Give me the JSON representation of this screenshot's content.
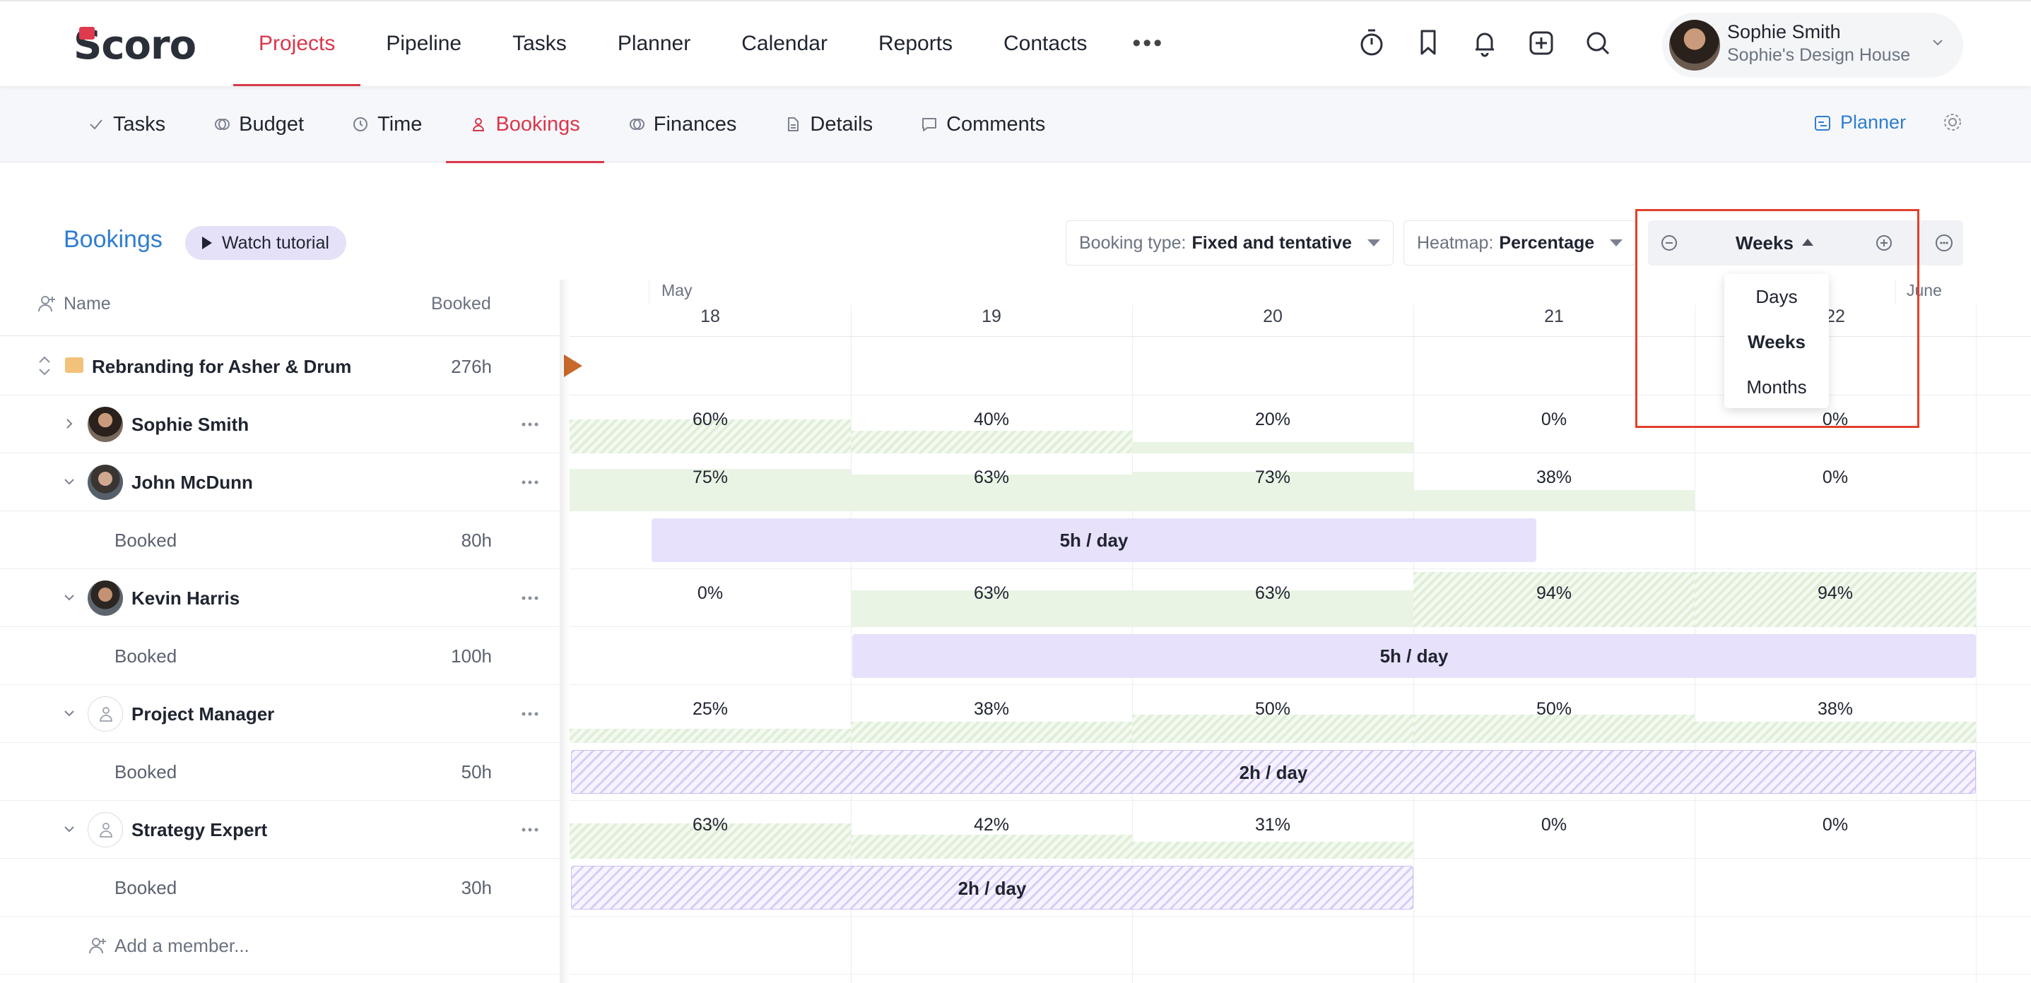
{
  "app": {
    "logo": "Scoro"
  },
  "nav": {
    "items": [
      "Projects",
      "Pipeline",
      "Tasks",
      "Planner",
      "Calendar",
      "Reports",
      "Contacts"
    ],
    "active": "Projects",
    "more": "•••"
  },
  "user": {
    "name": "Sophie Smith",
    "company": "Sophie's Design House"
  },
  "subnav": {
    "items": [
      "Tasks",
      "Budget",
      "Time",
      "Bookings",
      "Finances",
      "Details",
      "Comments"
    ],
    "active": "Bookings",
    "planner_link": "Planner"
  },
  "bookings": {
    "title": "Bookings",
    "watch_tutorial": "Watch tutorial",
    "filter_type_label": "Booking type:",
    "filter_type_value": "Fixed and tentative",
    "heatmap_label": "Heatmap:",
    "heatmap_value": "Percentage",
    "zoom_value": "Weeks",
    "zoom_options": [
      "Days",
      "Weeks",
      "Months"
    ],
    "zoom_selected": "Weeks"
  },
  "table": {
    "col_name": "Name",
    "col_booked": "Booked",
    "project": {
      "name": "Rebranding for Asher & Drum",
      "hours": "276h"
    },
    "members": [
      {
        "name": "Sophie Smith",
        "booked_label": "",
        "hours": ""
      },
      {
        "name": "John McDunn",
        "booked_label": "Booked",
        "hours": "80h"
      },
      {
        "name": "Kevin Harris",
        "booked_label": "Booked",
        "hours": "100h"
      },
      {
        "name": "Project Manager",
        "booked_label": "Booked",
        "hours": "50h"
      },
      {
        "name": "Strategy Expert",
        "booked_label": "Booked",
        "hours": "30h"
      }
    ],
    "add_member": "Add a member..."
  },
  "timeline": {
    "months": [
      "May",
      "June"
    ],
    "weeks": [
      "18",
      "19",
      "20",
      "21",
      "22"
    ],
    "heatmap": {
      "sophie": [
        "60%",
        "40%",
        "20%",
        "0%",
        "0%"
      ],
      "john": [
        "75%",
        "63%",
        "73%",
        "38%",
        "0%"
      ],
      "kevin": [
        "0%",
        "63%",
        "63%",
        "94%",
        "94%"
      ],
      "pm": [
        "25%",
        "38%",
        "50%",
        "50%",
        "38%"
      ],
      "strategy": [
        "63%",
        "42%",
        "31%",
        "0%",
        "0%"
      ]
    },
    "bars": {
      "john": "5h / day",
      "kevin": "5h / day",
      "pm": "2h / day",
      "strategy": "2h / day"
    }
  },
  "colors": {
    "accent": "#d9364b",
    "link": "#2f7dd1",
    "highlight": "#e2402c",
    "booking_bar": "#e8e1fb",
    "heat": "#e9f4e4"
  }
}
